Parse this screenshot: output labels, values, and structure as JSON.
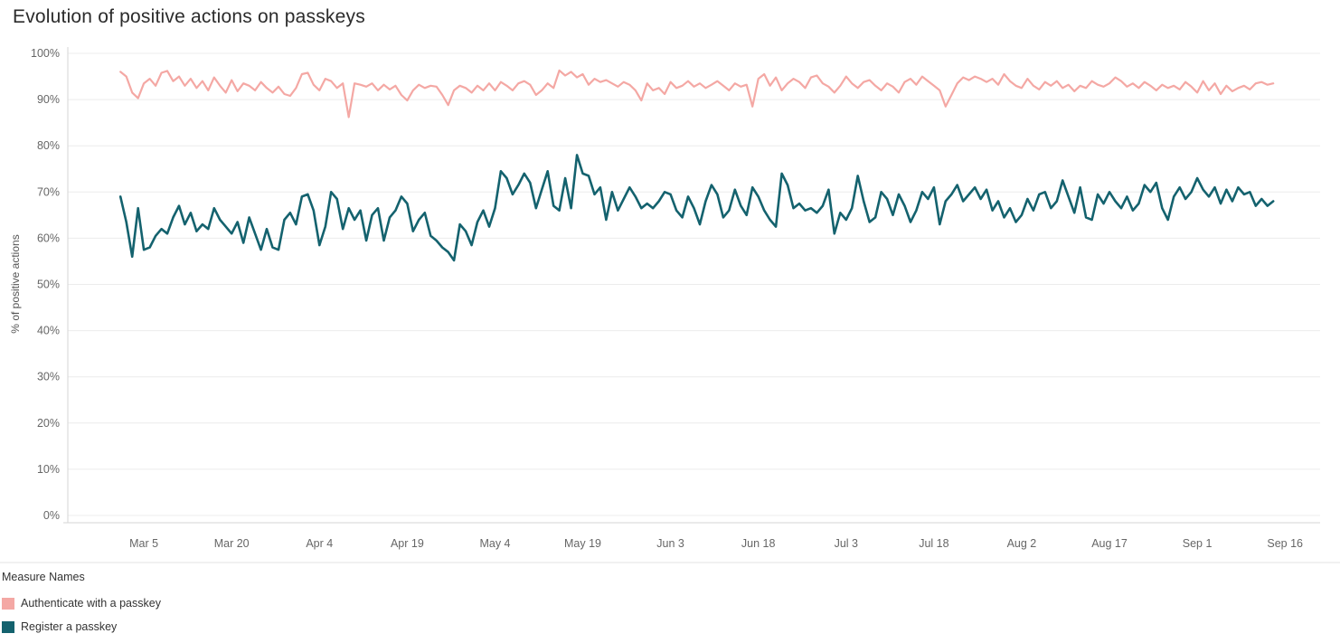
{
  "title": "Evolution of positive actions on passkeys",
  "colors": {
    "authenticate": "#F4A8A4",
    "register": "#14626E",
    "grid": "#ECECEC",
    "axis": "#D6D6D6",
    "divider": "#E3E3E3",
    "tick_text": "#666666",
    "axis_title_text": "#555555",
    "title_text": "#2B2B2B"
  },
  "legend": {
    "title": "Measure Names",
    "items": [
      {
        "label": "Authenticate with a passkey",
        "color": "#F4A8A4"
      },
      {
        "label": "Register a passkey",
        "color": "#14626E"
      }
    ]
  },
  "chart_data": {
    "type": "line",
    "title": "Evolution of positive actions on passkeys",
    "xlabel": "",
    "ylabel": "% of positive actions",
    "ylim": [
      0,
      100
    ],
    "grid": "horizontal",
    "legend_position": "bottom-left",
    "y_ticks": [
      "0%",
      "10%",
      "20%",
      "30%",
      "40%",
      "50%",
      "60%",
      "70%",
      "80%",
      "90%",
      "100%"
    ],
    "x_ticks": [
      {
        "label": "Mar 5",
        "day": 4
      },
      {
        "label": "Mar 20",
        "day": 19
      },
      {
        "label": "Apr 4",
        "day": 34
      },
      {
        "label": "Apr 19",
        "day": 49
      },
      {
        "label": "May 4",
        "day": 64
      },
      {
        "label": "May 19",
        "day": 79
      },
      {
        "label": "Jun 3",
        "day": 94
      },
      {
        "label": "Jun 18",
        "day": 109
      },
      {
        "label": "Jul 3",
        "day": 124
      },
      {
        "label": "Jul 18",
        "day": 139
      },
      {
        "label": "Aug 2",
        "day": 154
      },
      {
        "label": "Aug 17",
        "day": 169
      },
      {
        "label": "Sep 1",
        "day": 184
      },
      {
        "label": "Sep 16",
        "day": 199
      }
    ],
    "x_domain_days": [
      -9,
      205
    ],
    "x_start_date": "Mar 1",
    "x_end_date": "Sep 14",
    "x_unit": "daily",
    "series": [
      {
        "name": "Authenticate with a passkey",
        "color": "#F4A8A4",
        "start_day": 0,
        "values": [
          96,
          95,
          91.5,
          90.3,
          93.5,
          94.5,
          93,
          95.8,
          96.2,
          94,
          95,
          93,
          94.5,
          92.5,
          94,
          92,
          94.8,
          93,
          91.5,
          94.2,
          91.8,
          93.5,
          93,
          92,
          93.8,
          92.5,
          91.5,
          92.8,
          91.2,
          90.8,
          92.5,
          95.5,
          95.8,
          93.2,
          92,
          94.5,
          94,
          92.5,
          93.5,
          86.2,
          93.5,
          93.2,
          92.8,
          93.5,
          92,
          93.2,
          92.2,
          93,
          91,
          89.8,
          92,
          93.2,
          92.5,
          93,
          92.8,
          91,
          88.8,
          92,
          93,
          92.5,
          91.5,
          93,
          92,
          93.5,
          92,
          93.8,
          93,
          92,
          93.5,
          94,
          93.2,
          91,
          92,
          93.5,
          92.5,
          96.3,
          95.2,
          96,
          94.8,
          95.5,
          93.2,
          94.5,
          93.8,
          94.2,
          93.5,
          92.8,
          93.8,
          93.2,
          92,
          89.8,
          93.5,
          92,
          92.5,
          91.2,
          93.8,
          92.5,
          93,
          94,
          92.8,
          93.5,
          92.5,
          93.2,
          94,
          93,
          92,
          93.5,
          92.8,
          93.2,
          88.5,
          94.5,
          95.5,
          93,
          94.8,
          92,
          93.5,
          94.5,
          93.8,
          92.5,
          94.8,
          95.2,
          93.5,
          92.8,
          91.5,
          93,
          95,
          93.5,
          92.5,
          93.8,
          94.2,
          93,
          92,
          93.5,
          92.8,
          91.5,
          93.8,
          94.5,
          93.2,
          95,
          94,
          93,
          92,
          88.5,
          91,
          93.5,
          94.8,
          94.2,
          95,
          94.5,
          93.8,
          94.5,
          93.2,
          95.5,
          94,
          93,
          92.5,
          94.5,
          93,
          92.2,
          93.8,
          93,
          94,
          92.5,
          93.2,
          91.8,
          93,
          92.5,
          94,
          93.2,
          92.8,
          93.5,
          94.8,
          94,
          92.8,
          93.5,
          92.5,
          93.8,
          93,
          92,
          93.2,
          92.5,
          93,
          92.2,
          93.8,
          92.8,
          91.5,
          94,
          92,
          93.5,
          91.2,
          93,
          91.8,
          92.5,
          93,
          92.2,
          93.5,
          93.8,
          93.2,
          93.5
        ]
      },
      {
        "name": "Register a passkey",
        "color": "#14626E",
        "start_day": 0,
        "values": [
          69,
          63.5,
          56,
          66.5,
          57.5,
          58,
          60.5,
          62,
          61,
          64.5,
          67,
          63,
          65.5,
          61.5,
          63,
          62,
          66.5,
          64,
          62.5,
          61,
          63.5,
          59,
          64.5,
          61,
          57.5,
          62,
          58,
          57.5,
          64,
          65.5,
          63,
          69,
          69.5,
          66,
          58.5,
          62.5,
          70,
          68.5,
          62,
          66.5,
          64,
          66,
          59.5,
          65,
          66.5,
          59.5,
          64.5,
          66,
          69,
          67.5,
          61.5,
          64,
          65.5,
          60.5,
          59.5,
          58,
          57,
          55.2,
          63,
          61.5,
          58.5,
          63.5,
          66,
          62.5,
          66.5,
          74.5,
          73,
          69.5,
          71.5,
          74,
          72,
          66.5,
          70.5,
          74.5,
          67,
          66,
          73,
          66.5,
          78,
          74,
          73.5,
          69.5,
          71,
          64,
          70,
          66,
          68.5,
          71,
          69,
          66.5,
          67.5,
          66.5,
          68,
          70,
          69.5,
          66,
          64.5,
          69,
          66.5,
          63,
          68,
          71.5,
          69.5,
          64.5,
          66,
          70.5,
          67,
          65,
          71,
          69,
          66,
          64,
          62.5,
          74,
          71.5,
          66.5,
          67.5,
          66,
          66.5,
          65.5,
          67,
          70.5,
          61,
          65.5,
          64,
          66.5,
          73.5,
          68,
          63.5,
          64.5,
          70,
          68.5,
          65,
          69.5,
          67,
          63.5,
          66,
          70,
          68.5,
          71,
          63,
          68,
          69.5,
          71.5,
          68,
          69.5,
          71,
          68.5,
          70.5,
          66,
          68,
          64.5,
          66.5,
          63.5,
          65,
          68.5,
          66,
          69.5,
          70,
          66.5,
          68,
          72.5,
          69,
          65.5,
          71,
          64.5,
          64,
          69.5,
          67.5,
          70,
          68,
          66.5,
          69,
          66,
          67.5,
          71.5,
          70,
          72,
          66.5,
          64,
          69,
          71,
          68.5,
          70,
          73,
          70.5,
          69,
          71,
          67.5,
          70.5,
          68,
          71,
          69.5,
          70,
          67,
          68.5,
          67,
          68
        ]
      }
    ]
  }
}
